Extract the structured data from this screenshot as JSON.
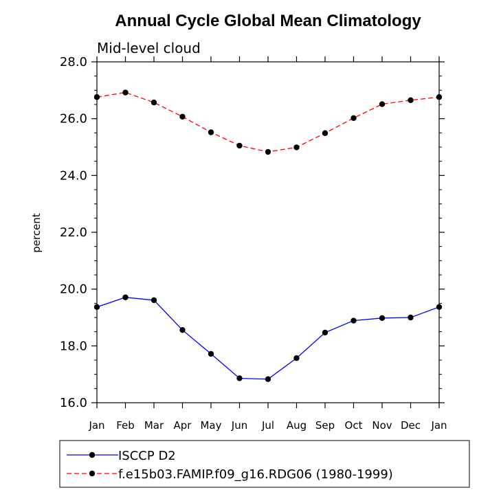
{
  "chart_data": {
    "type": "line",
    "title": "Annual Cycle Global Mean Climatology",
    "subtitle": "Mid-level cloud",
    "xlabel": "",
    "ylabel": "percent",
    "categories": [
      "Jan",
      "Feb",
      "Mar",
      "Apr",
      "May",
      "Jun",
      "Jul",
      "Aug",
      "Sep",
      "Oct",
      "Nov",
      "Dec",
      "Jan"
    ],
    "ylim": [
      16.0,
      28.0
    ],
    "yticks": [
      "16.0",
      "18.0",
      "20.0",
      "22.0",
      "24.0",
      "26.0",
      "28.0"
    ],
    "series": [
      {
        "name": "ISCCP D2",
        "color": "#0000ff",
        "dash": "solid",
        "values": [
          19.37,
          19.71,
          19.61,
          18.56,
          17.72,
          16.86,
          16.83,
          17.57,
          18.47,
          18.89,
          18.98,
          19.0,
          19.37
        ]
      },
      {
        "name": "f.e15b03.FAMIP.f09_g16.RDG06 (1980-1999)",
        "color": "#ff0000",
        "dash": "dashed",
        "values": [
          26.76,
          26.92,
          26.57,
          26.07,
          25.52,
          25.05,
          24.83,
          24.99,
          25.49,
          26.02,
          26.51,
          26.65,
          26.76
        ]
      }
    ]
  }
}
